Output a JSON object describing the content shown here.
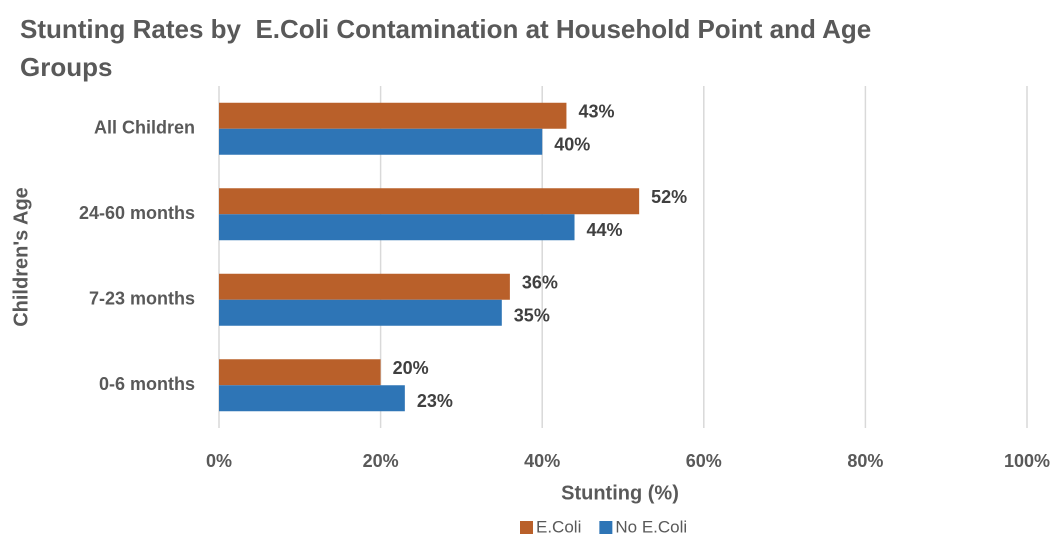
{
  "chart_data": {
    "type": "hbar",
    "title": "Stunting Rates by  E.Coli Contamination at Household Point and Age Groups",
    "categories": [
      "All Children",
      "24-60 months",
      "7-23 months",
      "0-6 months"
    ],
    "series": [
      {
        "name": "E.Coli",
        "color": "#b9602a",
        "values": [
          43,
          52,
          36,
          20
        ],
        "value_labels": [
          "43%",
          "52%",
          "36%",
          "20%"
        ]
      },
      {
        "name": "No E.Coli",
        "color": "#2e75b6",
        "values": [
          40,
          44,
          35,
          23
        ],
        "value_labels": [
          "40%",
          "44%",
          "35%",
          "23%"
        ]
      }
    ],
    "xlim": [
      0,
      100
    ],
    "xticks": [
      {
        "value": 0,
        "label": "0%"
      },
      {
        "value": 20,
        "label": "20%"
      },
      {
        "value": 40,
        "label": "40%"
      },
      {
        "value": 60,
        "label": "60%"
      },
      {
        "value": 80,
        "label": "80%"
      },
      {
        "value": 100,
        "label": "100%"
      }
    ],
    "x_label": "Stunting (%)",
    "y_label": "Children's Age",
    "grid": true,
    "legend": "bottom"
  }
}
